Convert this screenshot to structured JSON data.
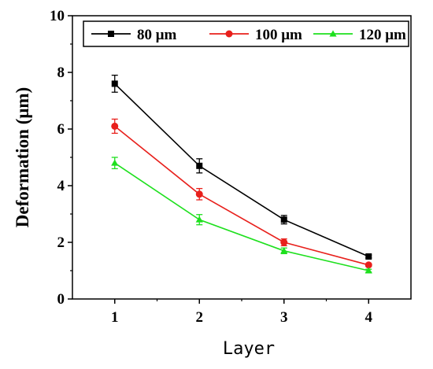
{
  "chart_data": {
    "type": "line",
    "xlabel": "Layer",
    "ylabel": "Deformation (μm)",
    "x": [
      1,
      2,
      3,
      4
    ],
    "x_ticks": [
      "1",
      "2",
      "3",
      "4"
    ],
    "xlim": [
      0.5,
      4.5
    ],
    "ylim": [
      0,
      10
    ],
    "y_ticks": [
      "0",
      "2",
      "4",
      "6",
      "8",
      "10"
    ],
    "y_tick_values": [
      0,
      2,
      4,
      6,
      8,
      10
    ],
    "grid": false,
    "legend_position": "top",
    "series": [
      {
        "name": "80 μm",
        "values": [
          7.6,
          4.7,
          2.8,
          1.5
        ],
        "errors": [
          0.3,
          0.25,
          0.15,
          0.05
        ],
        "color": "#000000",
        "marker": "square"
      },
      {
        "name": "100 μm",
        "values": [
          6.1,
          3.7,
          2.0,
          1.2
        ],
        "errors": [
          0.25,
          0.2,
          0.12,
          0.05
        ],
        "color": "#e8201c",
        "marker": "circle"
      },
      {
        "name": "120 μm",
        "values": [
          4.8,
          2.8,
          1.7,
          1.0
        ],
        "errors": [
          0.2,
          0.18,
          0.1,
          0.05
        ],
        "color": "#1ee01e",
        "marker": "triangle"
      }
    ]
  }
}
